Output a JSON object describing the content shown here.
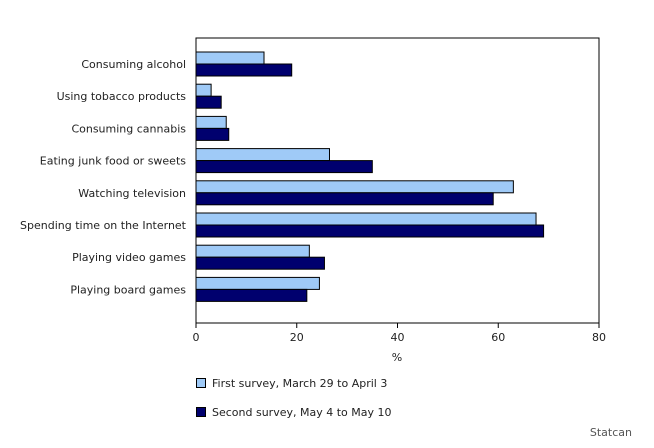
{
  "chart_data": {
    "type": "bar",
    "orientation": "horizontal",
    "categories": [
      "Consuming alcohol",
      "Using tobacco products",
      "Consuming cannabis",
      "Eating junk food or sweets",
      "Watching television",
      "Spending time on the Internet",
      "Playing video games",
      "Playing board games"
    ],
    "series": [
      {
        "name": "First survey, March 29 to April 3",
        "color": "#9fcaf7",
        "values": [
          13.5,
          3,
          6,
          26.5,
          63,
          67.5,
          22.5,
          24.5
        ]
      },
      {
        "name": "Second survey, May 4 to May 10",
        "color": "#00006e",
        "values": [
          19,
          5,
          6.5,
          35,
          59,
          69,
          25.5,
          22
        ]
      }
    ],
    "xlabel": "%",
    "xlim": [
      0,
      80
    ],
    "xticks": [
      0,
      20,
      40,
      60,
      80
    ],
    "legend_position": "bottom",
    "grid": false
  },
  "source": "Statcan"
}
